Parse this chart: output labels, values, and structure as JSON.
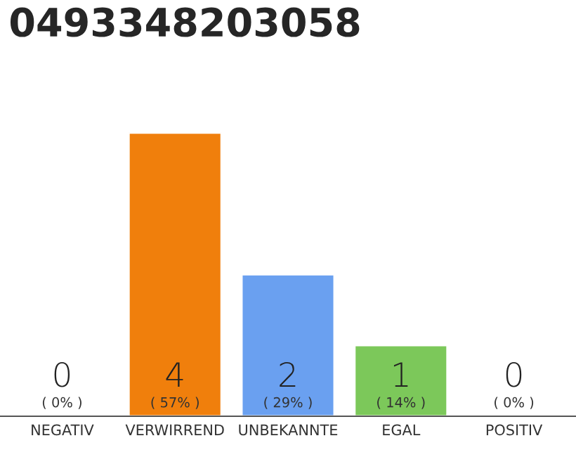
{
  "chart_data": {
    "type": "bar",
    "title": "0493348203058",
    "categories": [
      "NEGATIV",
      "VERWIRREND",
      "UNBEKANNTE",
      "EGAL",
      "POSITIV"
    ],
    "values": [
      0,
      4,
      2,
      1,
      0
    ],
    "colors": [
      null,
      "#f07f0c",
      "#6aa0f0",
      "#7cc85a",
      null
    ],
    "data_labels": true,
    "annotations": [
      "( 0% )",
      "( 57% )",
      "( 29% )",
      "( 14% )",
      "( 0% )"
    ],
    "tick_labels": "x"
  }
}
